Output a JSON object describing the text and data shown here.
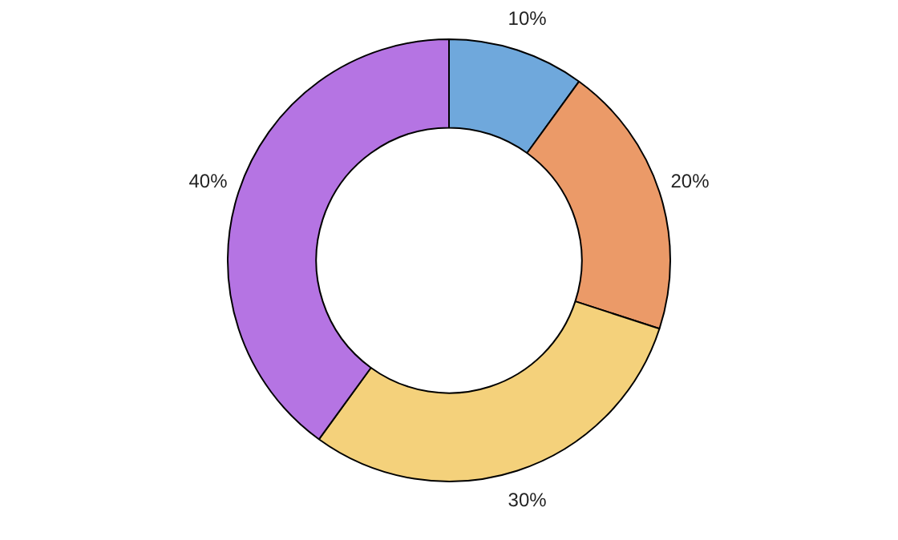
{
  "chart_data": {
    "type": "donut",
    "categories": [
      null,
      null,
      null,
      null
    ],
    "values": [
      10,
      20,
      30,
      40
    ],
    "colors": [
      "#6fa8dc",
      "#eb9a68",
      "#f4d17b",
      "#b574e3"
    ],
    "value_labels": [
      "10%",
      "20%",
      "30%",
      "40%"
    ],
    "legend": false
  }
}
